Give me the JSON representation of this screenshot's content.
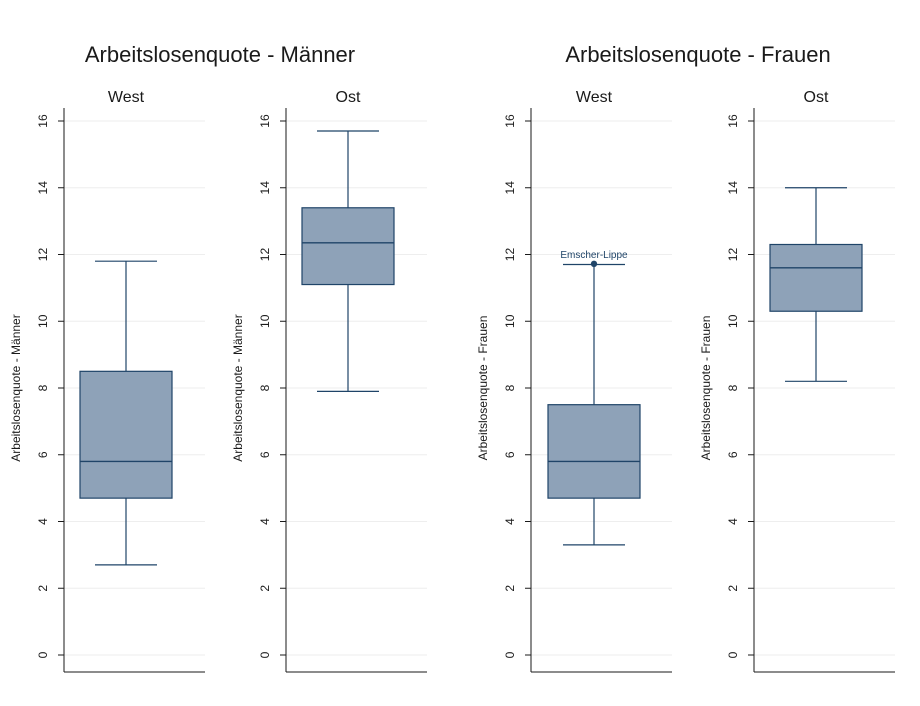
{
  "colors": {
    "box_fill": "#8ea2b8",
    "line": "#1f4468",
    "grid": "#eeeeee",
    "axis": "#1a1a1a"
  },
  "groups": [
    {
      "title": "Arbeitslosenquote - Männer"
    },
    {
      "title": "Arbeitslosenquote - Frauen"
    }
  ],
  "chart_data": [
    {
      "type": "box",
      "subtitle": "West",
      "ylabel": "Arbeitslosenquote - Männer",
      "ylim": [
        0,
        16
      ],
      "yticks": [
        0,
        2,
        4,
        6,
        8,
        10,
        12,
        14,
        16
      ],
      "grid": true,
      "whisker_low": 2.7,
      "q1": 4.7,
      "median": 5.8,
      "q3": 8.5,
      "whisker_high": 11.8,
      "outliers": []
    },
    {
      "type": "box",
      "subtitle": "Ost",
      "ylabel": "Arbeitslosenquote - Männer",
      "ylim": [
        0,
        16
      ],
      "yticks": [
        0,
        2,
        4,
        6,
        8,
        10,
        12,
        14,
        16
      ],
      "grid": true,
      "whisker_low": 7.9,
      "q1": 11.1,
      "median": 12.35,
      "q3": 13.4,
      "whisker_high": 15.7,
      "outliers": []
    },
    {
      "type": "box",
      "subtitle": "West",
      "ylabel": "Arbeitslosenquote - Frauen",
      "ylim": [
        0,
        16
      ],
      "yticks": [
        0,
        2,
        4,
        6,
        8,
        10,
        12,
        14,
        16
      ],
      "grid": true,
      "whisker_low": 3.3,
      "q1": 4.7,
      "median": 5.8,
      "q3": 7.5,
      "whisker_high": 11.7,
      "outliers": [
        {
          "value": 11.72,
          "label": "Emscher-Lippe"
        }
      ]
    },
    {
      "type": "box",
      "subtitle": "Ost",
      "ylabel": "Arbeitslosenquote - Frauen",
      "ylim": [
        0,
        16
      ],
      "yticks": [
        0,
        2,
        4,
        6,
        8,
        10,
        12,
        14,
        16
      ],
      "grid": true,
      "whisker_low": 8.2,
      "q1": 10.3,
      "median": 11.6,
      "q3": 12.3,
      "whisker_high": 14.0,
      "outliers": []
    }
  ]
}
